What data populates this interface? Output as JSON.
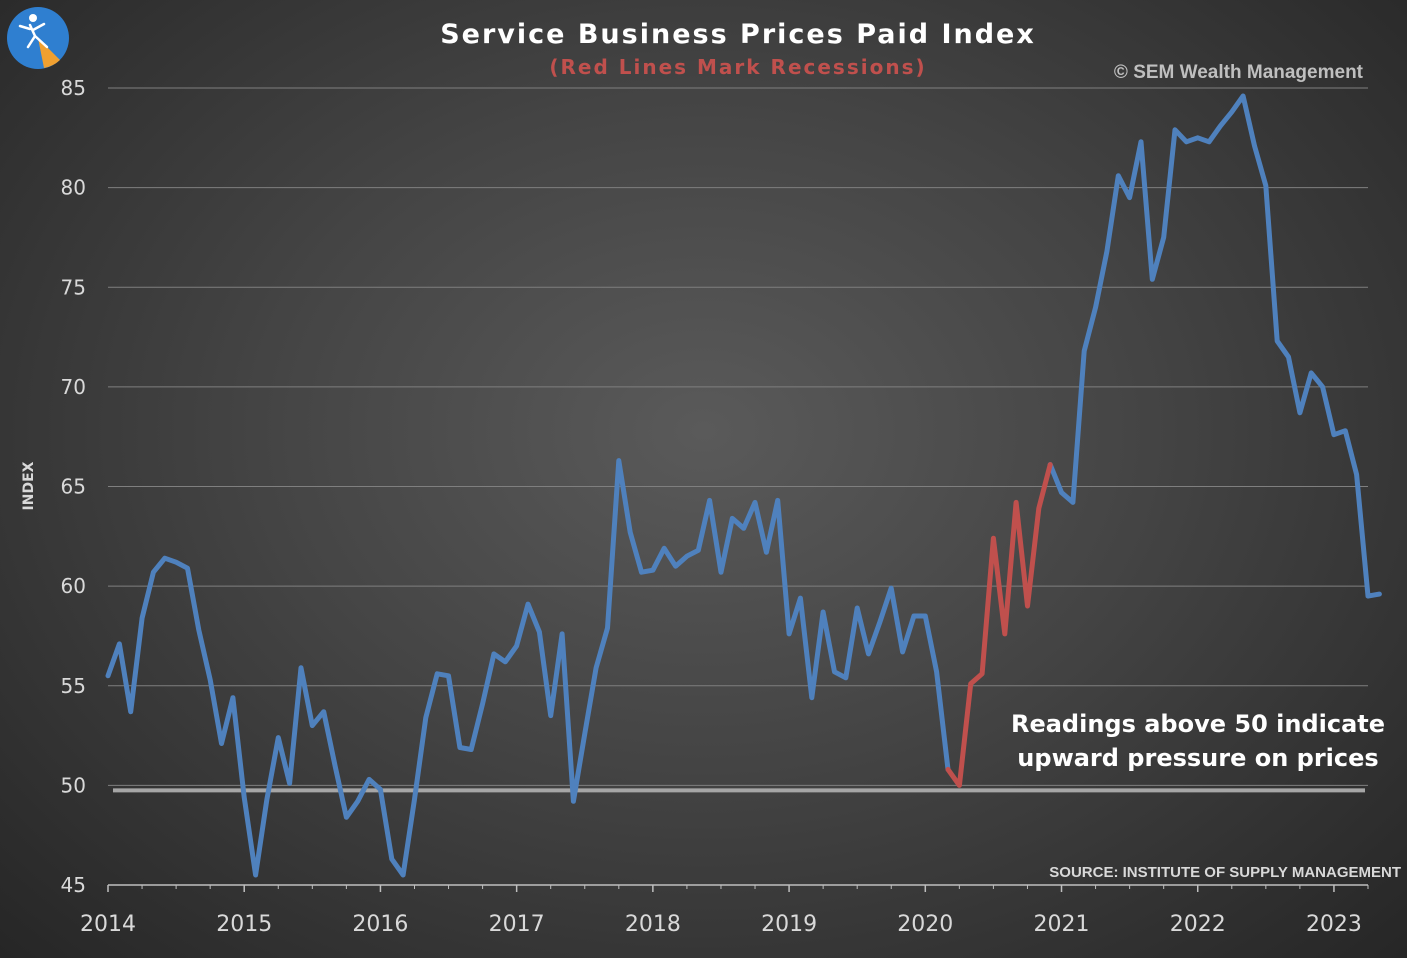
{
  "chart_data": {
    "type": "line",
    "title": "Service Business Prices Paid Index",
    "subtitle": "(Red Lines Mark Recessions)",
    "copyright": "© SEM Wealth Management",
    "source": "SOURCE:  INSTITUTE OF SUPPLY MANAGEMENT",
    "ylabel": "INDEX",
    "xlabel": "",
    "ylim": [
      45,
      85
    ],
    "yticks": [
      "45",
      "50",
      "55",
      "60",
      "65",
      "70",
      "75",
      "80",
      "85"
    ],
    "xlim": [
      2014,
      2023.25
    ],
    "xticks": [
      "2014",
      "2015",
      "2016",
      "2017",
      "2018",
      "2019",
      "2020",
      "2021",
      "2022",
      "2023"
    ],
    "grid": true,
    "reference_line": 50,
    "annotation": [
      "Readings above 50 indicate",
      "upward pressure on prices"
    ],
    "colors": {
      "line": "#4f81bd",
      "recession": "#c0504d",
      "grid": "#7f7f7f",
      "reference": "#a6a6a6"
    },
    "recession": {
      "start_index": 74,
      "end_index": 83
    },
    "series": [
      {
        "name": "Service Business Prices Paid Index",
        "start": 2014.0,
        "step": 0.0833333,
        "values": [
          55.5,
          57.1,
          53.7,
          58.4,
          60.7,
          61.4,
          61.2,
          60.9,
          57.8,
          55.3,
          52.1,
          54.4,
          49.4,
          45.5,
          49.3,
          52.4,
          50.1,
          55.9,
          53.0,
          53.7,
          51.0,
          48.4,
          49.2,
          50.3,
          49.8,
          46.3,
          45.5,
          49.3,
          53.4,
          55.6,
          55.5,
          51.9,
          51.8,
          54.1,
          56.6,
          56.2,
          57.0,
          59.1,
          57.7,
          53.5,
          57.6,
          49.2,
          52.6,
          55.9,
          57.9,
          66.3,
          62.7,
          60.7,
          60.8,
          61.9,
          61.0,
          61.5,
          61.8,
          64.3,
          60.7,
          63.4,
          62.9,
          64.2,
          61.7,
          64.3,
          57.6,
          59.4,
          54.4,
          58.7,
          55.7,
          55.4,
          58.9,
          56.6,
          58.2,
          59.9,
          56.7,
          58.5,
          58.5,
          55.7,
          50.8,
          50.0,
          55.1,
          55.6,
          62.4,
          57.6,
          64.2,
          59.0,
          63.9,
          66.1,
          64.7,
          64.2,
          71.8,
          74.0,
          76.8,
          80.6,
          79.5,
          82.3,
          75.4,
          77.5,
          82.9,
          82.3,
          82.5,
          82.3,
          83.1,
          83.8,
          84.6,
          82.1,
          80.1,
          72.3,
          71.5,
          68.7,
          70.7,
          70.0,
          67.6,
          67.8,
          65.6,
          59.5,
          59.6
        ]
      }
    ]
  }
}
